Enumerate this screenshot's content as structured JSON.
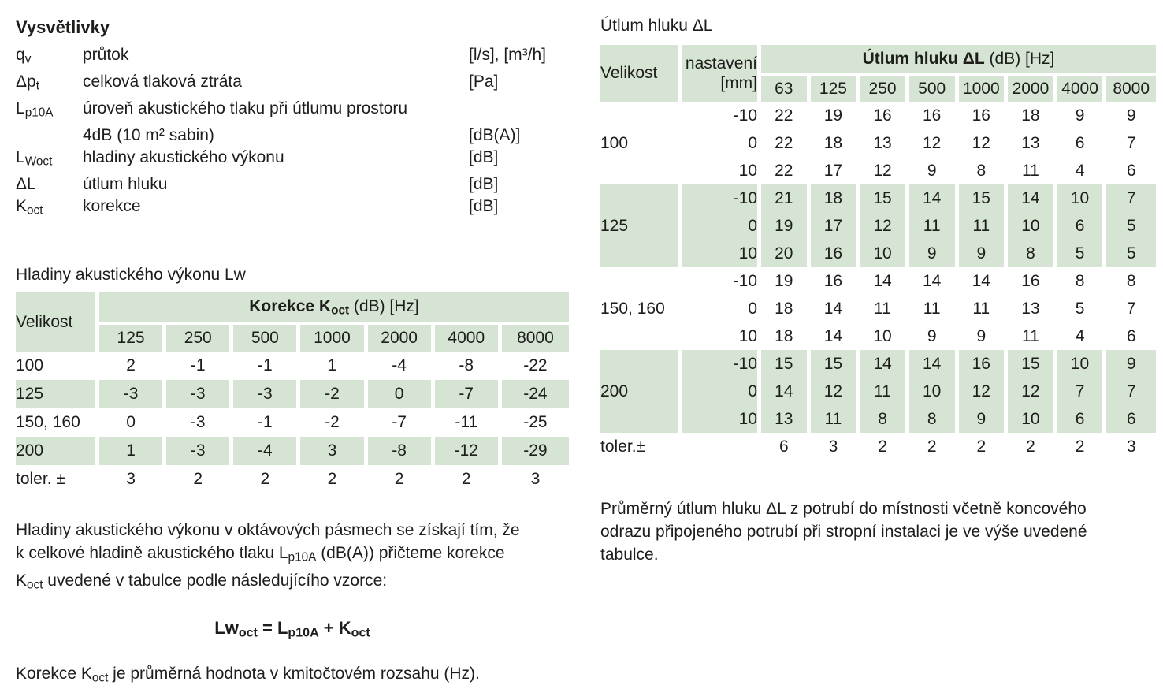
{
  "colors": {
    "table_green": "#d6e5d3",
    "text": "#1d1d1b"
  },
  "legend": {
    "title": "Vysvětlivky",
    "rows": [
      {
        "symbol": [
          {
            "t": "q"
          },
          {
            "t": "v",
            "sub": true
          }
        ],
        "desc": "průtok",
        "unit": "[l/s], [m³/h]"
      },
      {
        "symbol": [
          {
            "t": "Δp"
          },
          {
            "t": "t",
            "sub": true
          }
        ],
        "desc": "celková tlaková ztráta",
        "unit": "[Pa]"
      },
      {
        "symbol": [
          {
            "t": "L"
          },
          {
            "t": "p10A",
            "sub": true
          }
        ],
        "desc": "úroveň akustického tlaku při útlumu prostoru",
        "unit": ""
      },
      {
        "symbol": [],
        "desc": "4dB (10 m² sabin)",
        "unit": "[dB(A)]"
      },
      {
        "symbol": [
          {
            "t": "L"
          },
          {
            "t": "Woct",
            "sub": true
          }
        ],
        "desc": "hladiny akustického výkonu",
        "unit": "[dB]"
      },
      {
        "symbol": [
          {
            "t": "ΔL"
          }
        ],
        "desc": "útlum hluku",
        "unit": "[dB]"
      },
      {
        "symbol": [
          {
            "t": "K"
          },
          {
            "t": "oct",
            "sub": true
          }
        ],
        "desc": "korekce",
        "unit": "[dB]"
      }
    ]
  },
  "lw_section": {
    "title": "Hladiny akustického výkonu Lw",
    "table": {
      "corner_label": "Velikost",
      "header": [
        {
          "t": "Korekce K",
          "b": true
        },
        {
          "t": "oct",
          "sub": true,
          "b": true
        },
        {
          "t": " (dB) [Hz]"
        }
      ],
      "freqs": [
        "125",
        "250",
        "500",
        "1000",
        "2000",
        "4000",
        "8000"
      ],
      "rows": [
        {
          "label": "100",
          "green": false,
          "values": [
            "2",
            "-1",
            "-1",
            "1",
            "-4",
            "-8",
            "-22"
          ]
        },
        {
          "label": "125",
          "green": true,
          "values": [
            "-3",
            "-3",
            "-3",
            "-2",
            "0",
            "-7",
            "-24"
          ]
        },
        {
          "label": "150, 160",
          "green": false,
          "values": [
            "0",
            "-3",
            "-1",
            "-2",
            "-7",
            "-11",
            "-25"
          ]
        },
        {
          "label": "200",
          "green": true,
          "values": [
            "1",
            "-3",
            "-4",
            "3",
            "-8",
            "-12",
            "-29"
          ]
        },
        {
          "label": "toler. ±",
          "green": false,
          "values": [
            "3",
            "2",
            "2",
            "2",
            "2",
            "2",
            "3"
          ]
        }
      ]
    },
    "paragraph": [
      {
        "t": "Hladiny akustického výkonu v oktávových pásmech se získají tím, že"
      },
      {
        "br": true
      },
      {
        "t": "k celkové hladině akustického tlaku L"
      },
      {
        "t": "p10A",
        "sub": true
      },
      {
        "t": " (dB(A)) přičteme korekce"
      },
      {
        "br": true
      },
      {
        "t": "K"
      },
      {
        "t": "oct",
        "sub": true
      },
      {
        "t": " uvedené v tabulce podle následujícího vzorce:"
      }
    ],
    "formula": [
      {
        "t": "Lw"
      },
      {
        "t": "oct",
        "sub": true
      },
      {
        "t": " = L"
      },
      {
        "t": "p10A",
        "sub": true
      },
      {
        "t": " + K"
      },
      {
        "t": "oct",
        "sub": true
      }
    ],
    "note": [
      {
        "t": "Korekce K"
      },
      {
        "t": "oct",
        "sub": true
      },
      {
        "t": " je průměrná hodnota v kmitočtovém rozsahu (Hz)."
      }
    ]
  },
  "dl_section": {
    "title": "Útlum hluku ΔL",
    "table": {
      "corner_label": "Velikost",
      "setting_label_line1": "nastavení",
      "setting_label_line2": "[mm]",
      "header": [
        {
          "t": "Útlum hluku ΔL",
          "b": true
        },
        {
          "t": " (dB) [Hz]"
        }
      ],
      "freqs": [
        "63",
        "125",
        "250",
        "500",
        "1000",
        "2000",
        "4000",
        "8000"
      ],
      "groups": [
        {
          "label": "100",
          "green": false,
          "rows": [
            {
              "setting": "-10",
              "values": [
                "22",
                "19",
                "16",
                "16",
                "16",
                "18",
                "9",
                "9"
              ]
            },
            {
              "setting": "0",
              "values": [
                "22",
                "18",
                "13",
                "12",
                "12",
                "13",
                "6",
                "7"
              ]
            },
            {
              "setting": "10",
              "values": [
                "22",
                "17",
                "12",
                "9",
                "8",
                "11",
                "4",
                "6"
              ]
            }
          ]
        },
        {
          "label": "125",
          "green": true,
          "rows": [
            {
              "setting": "-10",
              "values": [
                "21",
                "18",
                "15",
                "14",
                "15",
                "14",
                "10",
                "7"
              ]
            },
            {
              "setting": "0",
              "values": [
                "19",
                "17",
                "12",
                "11",
                "11",
                "10",
                "6",
                "5"
              ]
            },
            {
              "setting": "10",
              "values": [
                "20",
                "16",
                "10",
                "9",
                "9",
                "8",
                "5",
                "5"
              ]
            }
          ]
        },
        {
          "label": "150, 160",
          "green": false,
          "rows": [
            {
              "setting": "-10",
              "values": [
                "19",
                "16",
                "14",
                "14",
                "14",
                "16",
                "8",
                "8"
              ]
            },
            {
              "setting": "0",
              "values": [
                "18",
                "14",
                "11",
                "11",
                "11",
                "13",
                "5",
                "7"
              ]
            },
            {
              "setting": "10",
              "values": [
                "18",
                "14",
                "10",
                "9",
                "9",
                "11",
                "4",
                "6"
              ]
            }
          ]
        },
        {
          "label": "200",
          "green": true,
          "rows": [
            {
              "setting": "-10",
              "values": [
                "15",
                "15",
                "14",
                "14",
                "16",
                "15",
                "10",
                "9"
              ]
            },
            {
              "setting": "0",
              "values": [
                "14",
                "12",
                "11",
                "10",
                "12",
                "12",
                "7",
                "7"
              ]
            },
            {
              "setting": "10",
              "values": [
                "13",
                "11",
                "8",
                "8",
                "9",
                "10",
                "6",
                "6"
              ]
            }
          ]
        }
      ],
      "toler": {
        "label": "toler.±",
        "values": [
          "6",
          "3",
          "2",
          "2",
          "2",
          "2",
          "2",
          "3"
        ]
      }
    },
    "paragraph": [
      {
        "t": "Průměrný útlum hluku ΔL z potrubí do místnosti včetně koncového"
      },
      {
        "br": true
      },
      {
        "t": "odrazu připojeného potrubí při stropní instalaci je ve výše uvedené"
      },
      {
        "br": true
      },
      {
        "t": "tabulce."
      }
    ]
  }
}
